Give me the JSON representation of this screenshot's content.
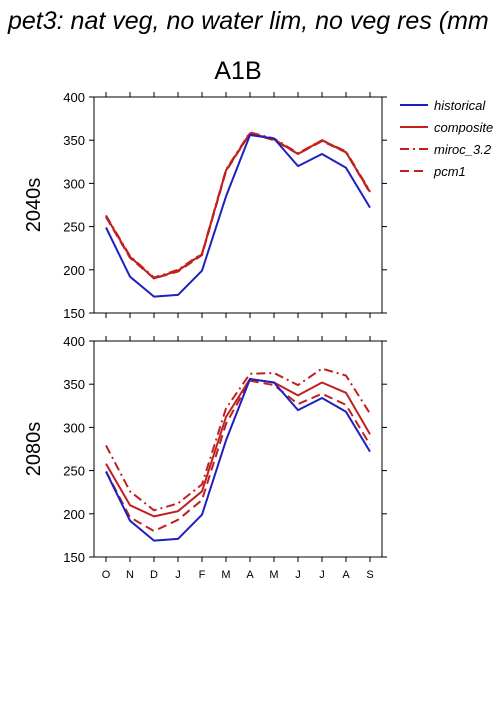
{
  "chart_title": "pet3: nat veg, no water lim, no veg res (mm",
  "subtitle": "A1B",
  "legend": {
    "items": [
      {
        "label": "historical",
        "color": "#2020c0",
        "dash": "solid"
      },
      {
        "label": "composite",
        "color": "#c02020",
        "dash": "solid"
      },
      {
        "label": "miroc_3.2",
        "color": "#c02020",
        "dash": "dashdot"
      },
      {
        "label": "pcm1",
        "color": "#c02020",
        "dash": "dash"
      }
    ]
  },
  "chart_data": [
    {
      "type": "line",
      "row_label": "2040s",
      "categories": [
        "O",
        "N",
        "D",
        "J",
        "F",
        "M",
        "A",
        "M",
        "J",
        "J",
        "A",
        "S"
      ],
      "ylim": [
        150,
        400
      ],
      "yticks": [
        150,
        200,
        250,
        300,
        350,
        400
      ],
      "grid": false,
      "series": [
        {
          "name": "historical",
          "values": [
            249,
            192,
            169,
            171,
            199,
            285,
            356,
            352,
            320,
            334,
            318,
            272
          ]
        },
        {
          "name": "composite",
          "values": [
            262,
            215,
            190,
            199,
            218,
            315,
            358,
            351,
            334,
            350,
            336,
            290
          ]
        },
        {
          "name": "miroc_3.2",
          "values": [
            263,
            216,
            191,
            200,
            219,
            316,
            359,
            352,
            335,
            350,
            337,
            291
          ]
        },
        {
          "name": "pcm1",
          "values": [
            261,
            214,
            190,
            198,
            217,
            314,
            358,
            350,
            334,
            349,
            336,
            289
          ]
        }
      ]
    },
    {
      "type": "line",
      "row_label": "2080s",
      "categories": [
        "O",
        "N",
        "D",
        "J",
        "F",
        "M",
        "A",
        "M",
        "J",
        "J",
        "A",
        "S"
      ],
      "ylim": [
        150,
        400
      ],
      "yticks": [
        150,
        200,
        250,
        300,
        350,
        400
      ],
      "grid": false,
      "series": [
        {
          "name": "historical",
          "values": [
            249,
            192,
            169,
            171,
            199,
            285,
            356,
            352,
            320,
            334,
            318,
            272
          ]
        },
        {
          "name": "composite",
          "values": [
            258,
            210,
            197,
            203,
            226,
            312,
            356,
            352,
            337,
            352,
            340,
            292
          ]
        },
        {
          "name": "miroc_3.2",
          "values": [
            279,
            226,
            204,
            212,
            234,
            322,
            362,
            363,
            349,
            368,
            360,
            316
          ]
        },
        {
          "name": "pcm1",
          "values": [
            249,
            196,
            180,
            193,
            216,
            304,
            354,
            349,
            327,
            339,
            326,
            280
          ]
        }
      ]
    }
  ]
}
